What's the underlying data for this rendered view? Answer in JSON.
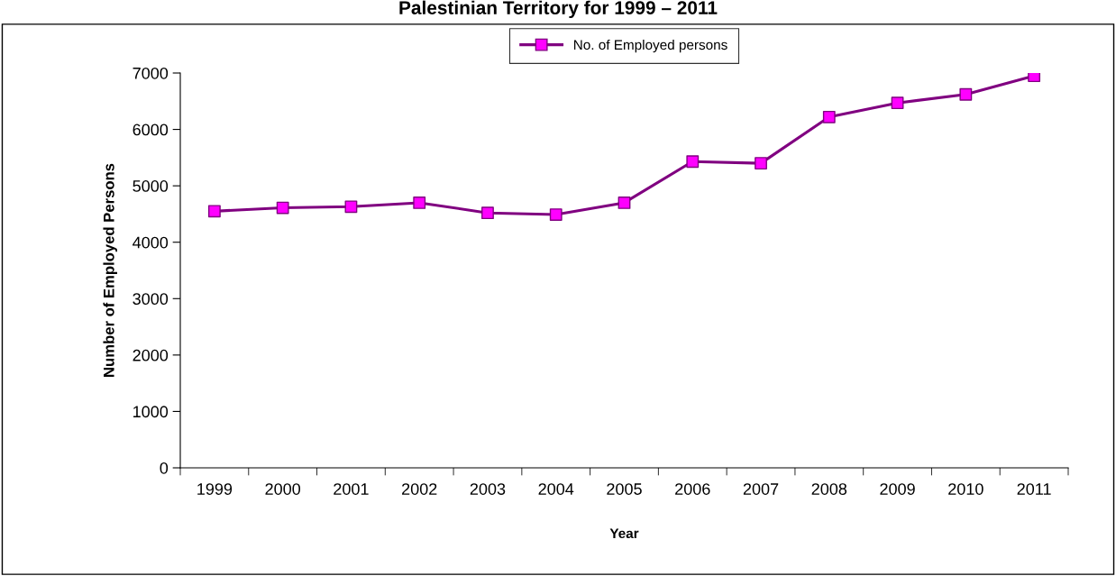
{
  "chart_data": {
    "type": "line",
    "title": "Palestinian Territory for 1999 – 2011",
    "xlabel": "Year",
    "ylabel": "Number of Employed Persons",
    "categories": [
      "1999",
      "2000",
      "2001",
      "2002",
      "2003",
      "2004",
      "2005",
      "2006",
      "2007",
      "2008",
      "2009",
      "2010",
      "2011"
    ],
    "series": [
      {
        "name": "No. of Employed persons",
        "color": "#800080",
        "colors": [
          "#ff00ff",
          "#ff00ff",
          "#ff00ff",
          "#ff00ff",
          "#ff00ff",
          "#ff00ff",
          "#ff00ff",
          "#ff00ff",
          "#ff00ff",
          "#ff00ff",
          "#ff00ff",
          "#ff00ff",
          "#ff00ff"
        ],
        "values": [
          4550,
          4610,
          4630,
          4700,
          4520,
          4490,
          4700,
          5430,
          5400,
          6220,
          6470,
          6620,
          6950
        ]
      }
    ],
    "ylim": [
      0,
      7000
    ],
    "yticks": [
      0,
      1000,
      2000,
      3000,
      4000,
      5000,
      6000,
      7000
    ],
    "grid": false,
    "legend": "top",
    "marker": "square",
    "line_style": "solid"
  }
}
